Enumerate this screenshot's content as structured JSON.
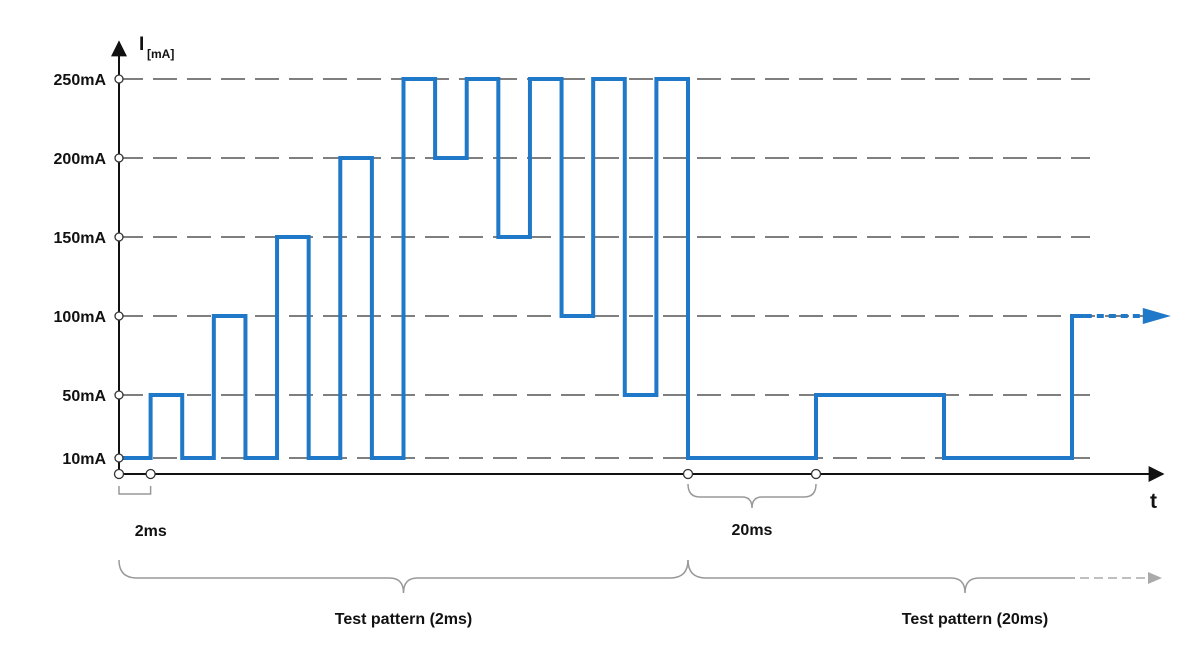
{
  "chart_data": {
    "type": "line",
    "ylabel_main": "I",
    "ylabel_sub": "[mA]",
    "xlabel": "t",
    "y_levels": [
      10,
      50,
      100,
      150,
      200,
      250
    ],
    "y_tick_labels": [
      "10mA",
      "50mA",
      "100mA",
      "150mA",
      "200mA",
      "250mA"
    ],
    "grid": "dashed",
    "series": [
      {
        "color": "#1f78c8",
        "steps": [
          {
            "start": 0,
            "end": 2,
            "value": 10
          },
          {
            "start": 2,
            "end": 4,
            "value": 50
          },
          {
            "start": 4,
            "end": 6,
            "value": 10
          },
          {
            "start": 6,
            "end": 8,
            "value": 100
          },
          {
            "start": 8,
            "end": 10,
            "value": 10
          },
          {
            "start": 10,
            "end": 12,
            "value": 150
          },
          {
            "start": 12,
            "end": 14,
            "value": 10
          },
          {
            "start": 14,
            "end": 16,
            "value": 200
          },
          {
            "start": 16,
            "end": 18,
            "value": 10
          },
          {
            "start": 18,
            "end": 20,
            "value": 250
          },
          {
            "start": 20,
            "end": 22,
            "value": 200
          },
          {
            "start": 22,
            "end": 24,
            "value": 250
          },
          {
            "start": 24,
            "end": 26,
            "value": 150
          },
          {
            "start": 26,
            "end": 28,
            "value": 250
          },
          {
            "start": 28,
            "end": 30,
            "value": 100
          },
          {
            "start": 30,
            "end": 32,
            "value": 250
          },
          {
            "start": 32,
            "end": 34,
            "value": 50
          },
          {
            "start": 34,
            "end": 36,
            "value": 250
          },
          {
            "start": 36,
            "end": 56,
            "value": 10
          },
          {
            "start": 56,
            "end": 76,
            "value": 50
          },
          {
            "start": 76,
            "end": 96,
            "value": 10
          },
          {
            "start": 96,
            "end": 98,
            "value": 100
          }
        ],
        "continues": true
      }
    ],
    "annotations": {
      "interval_small": {
        "label": "2ms",
        "start": 0,
        "end": 2
      },
      "interval_large": {
        "label": "20ms",
        "start": 36,
        "end": 56
      },
      "pattern_1": {
        "label": "Test pattern (2ms)",
        "start": 0,
        "end": 36
      },
      "pattern_2": {
        "label": "Test pattern (20ms)",
        "start": 36
      }
    }
  }
}
